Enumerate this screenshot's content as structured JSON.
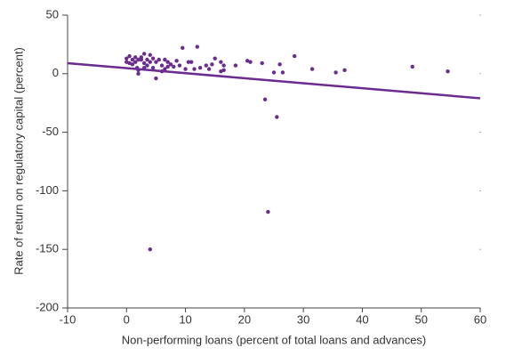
{
  "chart_data": {
    "type": "scatter",
    "x_label": "Non-performing loans (percent of total loans and advances)",
    "y_label": "Rate of return on regulatory capital (percent)",
    "xlim": [
      -10,
      60
    ],
    "xticks": [
      -10,
      0,
      10,
      20,
      30,
      40,
      50,
      60
    ],
    "ylim": [
      -200,
      50
    ],
    "yticks": [
      -200,
      -150,
      -100,
      -50,
      0,
      50
    ],
    "series": [
      {
        "type": "scatter",
        "color": "#6a2c8e",
        "x": [
          4,
          24,
          23.5,
          25.5,
          9.5,
          12,
          28.5,
          48.5,
          54.5,
          31.5,
          35.5,
          37,
          26,
          25,
          26.5,
          23,
          20.5,
          21,
          18.5,
          16,
          16.5,
          16.5,
          16,
          15,
          14.5,
          14,
          13.5,
          12.5,
          11,
          11.5,
          10.5,
          10,
          9,
          8.5,
          8,
          7.5,
          7,
          6.5,
          6,
          5.5,
          5,
          5,
          4.5,
          4,
          4,
          3.5,
          3,
          3,
          2.5,
          2.5,
          2,
          2,
          1.5,
          1.5,
          1,
          0.5,
          0.5,
          0,
          0,
          1,
          3,
          2,
          3.5,
          4.5,
          6,
          7,
          6.5,
          1.8
        ],
        "values": [
          -150,
          -118,
          -22,
          -37,
          22,
          23,
          15,
          6,
          2,
          4,
          1,
          3,
          8,
          1,
          1,
          9,
          11,
          10,
          7,
          10,
          7,
          3,
          2,
          13,
          8,
          4,
          7,
          5,
          10,
          4,
          10,
          4,
          7,
          11,
          6,
          8,
          10,
          12,
          7,
          12,
          -4,
          10,
          13,
          16,
          10,
          7,
          17,
          5,
          12,
          14,
          3,
          0,
          10,
          14,
          12,
          15,
          9,
          10,
          13,
          8,
          9,
          12,
          12,
          5,
          2,
          6,
          4,
          5
        ]
      },
      {
        "type": "line",
        "color": "#6a2c8e",
        "x": [
          -10,
          60
        ],
        "values": [
          9,
          -21
        ]
      }
    ]
  }
}
